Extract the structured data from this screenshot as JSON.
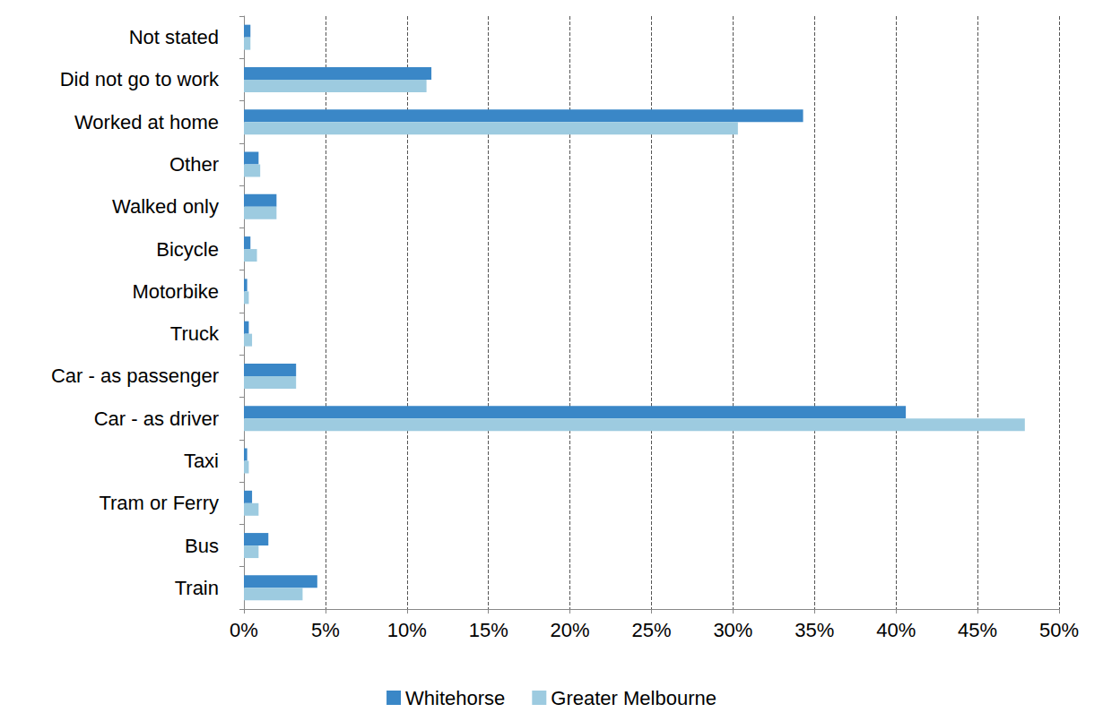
{
  "chart_data": {
    "type": "bar",
    "orientation": "horizontal",
    "grid": true,
    "legend": "bottom",
    "categories": [
      "Not stated",
      "Did not go to work",
      "Worked at home",
      "Other",
      "Walked only",
      "Bicycle",
      "Motorbike",
      "Truck",
      "Car - as passenger",
      "Car - as driver",
      "Taxi",
      "Tram or Ferry",
      "Bus",
      "Train"
    ],
    "series": [
      {
        "name": "Whitehorse",
        "color": "#3a87c7",
        "values": [
          0.4,
          11.5,
          34.3,
          0.9,
          2.0,
          0.4,
          0.2,
          0.3,
          3.2,
          40.6,
          0.2,
          0.5,
          1.5,
          4.5
        ]
      },
      {
        "name": "Greater Melbourne",
        "color": "#9dcbe0",
        "values": [
          0.4,
          11.2,
          30.3,
          1.0,
          2.0,
          0.8,
          0.3,
          0.5,
          3.2,
          47.9,
          0.3,
          0.9,
          0.9,
          3.6
        ]
      }
    ],
    "xlim": [
      0,
      50
    ],
    "xticks": [
      {
        "value": 0,
        "label": "0%"
      },
      {
        "value": 5,
        "label": "5%"
      },
      {
        "value": 10,
        "label": "10%"
      },
      {
        "value": 15,
        "label": "15%"
      },
      {
        "value": 20,
        "label": "20%"
      },
      {
        "value": 25,
        "label": "25%"
      },
      {
        "value": 30,
        "label": "30%"
      },
      {
        "value": 35,
        "label": "35%"
      },
      {
        "value": 40,
        "label": "40%"
      },
      {
        "value": 45,
        "label": "45%"
      },
      {
        "value": 50,
        "label": "50%"
      }
    ]
  }
}
